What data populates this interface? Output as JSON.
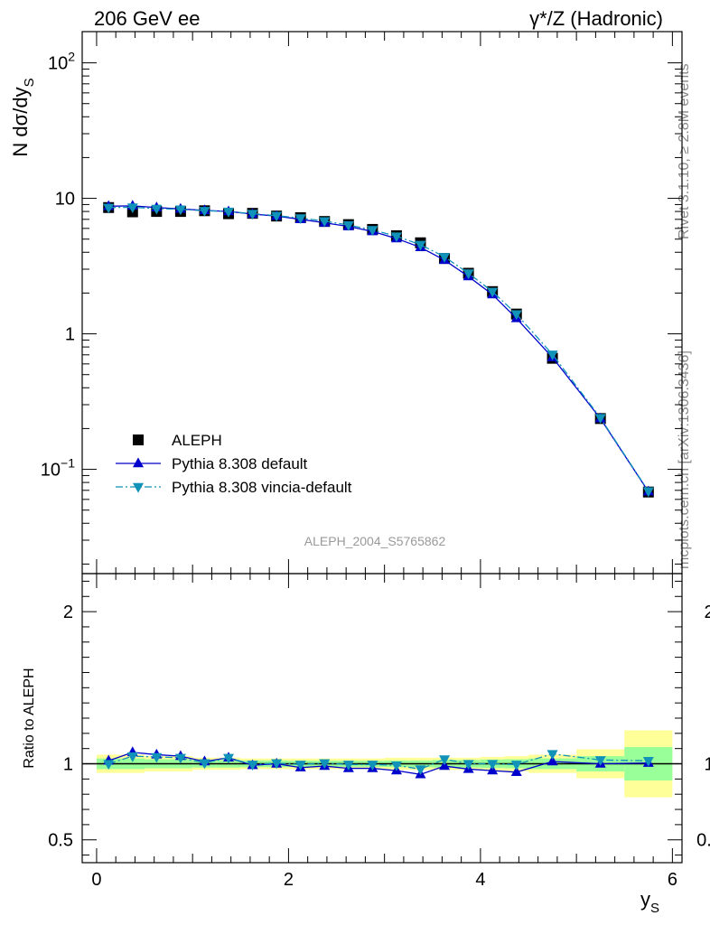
{
  "header": {
    "left": "206 GeV ee",
    "right": "γ*/Z (Hadronic)"
  },
  "side_text": {
    "rivet": "Rivet 3.1.10, ≥ 2.8M events",
    "mcplots": "mcplots.cern.ch [arXiv:1306.3436]"
  },
  "analysis_id": "ALEPH_2004_S5765862",
  "chart_data": [
    {
      "type": "scatter",
      "panel": "main",
      "ylabel": "N dσ/dy_S",
      "xlabel": "y_S",
      "yscale": "log",
      "xlim": [
        -0.15,
        6.1
      ],
      "ylim": [
        0.017,
        170
      ],
      "y_ticks": [
        {
          "value": 0.1,
          "base": "10",
          "exp": "−1"
        },
        {
          "value": 1,
          "text": "1"
        },
        {
          "value": 10,
          "text": "10"
        },
        {
          "value": 100,
          "base": "10",
          "exp": "2"
        }
      ],
      "legend_position": "lower-left",
      "x": [
        0.125,
        0.375,
        0.625,
        0.875,
        1.125,
        1.375,
        1.625,
        1.875,
        2.125,
        2.375,
        2.625,
        2.875,
        3.125,
        3.375,
        3.625,
        3.875,
        4.125,
        4.375,
        4.75,
        5.25,
        5.75
      ],
      "series": [
        {
          "name": "ALEPH",
          "color": "#000000",
          "marker": "square",
          "values": [
            8.55,
            7.95,
            8.0,
            8.0,
            8.1,
            7.7,
            7.75,
            7.4,
            7.2,
            6.75,
            6.4,
            5.9,
            5.3,
            4.7,
            3.6,
            2.8,
            2.05,
            1.4,
            0.66,
            0.237,
            0.068
          ]
        },
        {
          "name": "Pythia 8.308 default",
          "color": "#0000cc",
          "marker": "triangle-up",
          "line": "solid",
          "values": [
            8.75,
            8.8,
            8.55,
            8.35,
            8.15,
            8.0,
            7.65,
            7.4,
            7.0,
            6.6,
            6.2,
            5.7,
            5.05,
            4.35,
            3.5,
            2.65,
            1.95,
            1.3,
            0.67,
            0.237,
            0.0685
          ]
        },
        {
          "name": "Pythia 8.308 vincia-default",
          "color": "#1192b8",
          "marker": "triangle-down",
          "line": "dashdot",
          "values": [
            8.55,
            8.6,
            8.4,
            8.3,
            8.1,
            8.0,
            7.7,
            7.45,
            7.15,
            6.8,
            6.35,
            5.85,
            5.25,
            4.55,
            3.7,
            2.8,
            2.05,
            1.4,
            0.705,
            0.24,
            0.069
          ]
        }
      ]
    },
    {
      "type": "line",
      "panel": "ratio",
      "ylabel": "Ratio to ALEPH",
      "xlabel": "y_S",
      "xlim": [
        -0.15,
        6.1
      ],
      "ylim": [
        0.35,
        2.25
      ],
      "x_ticks": [
        "0",
        "2",
        "4",
        "6"
      ],
      "y_ticks": [
        "0.5",
        "1",
        "2"
      ],
      "bins": [
        [
          0,
          0.25
        ],
        [
          0.25,
          0.5
        ],
        [
          0.5,
          0.75
        ],
        [
          0.75,
          1.0
        ],
        [
          1.0,
          1.25
        ],
        [
          1.25,
          1.5
        ],
        [
          1.5,
          1.75
        ],
        [
          1.75,
          2.0
        ],
        [
          2.0,
          2.25
        ],
        [
          2.25,
          2.5
        ],
        [
          2.5,
          2.75
        ],
        [
          2.75,
          3.0
        ],
        [
          3.0,
          3.25
        ],
        [
          3.25,
          3.5
        ],
        [
          3.5,
          3.75
        ],
        [
          3.75,
          4.0
        ],
        [
          4.0,
          4.25
        ],
        [
          4.25,
          4.5
        ],
        [
          4.5,
          5.0
        ],
        [
          5.0,
          5.5
        ],
        [
          5.5,
          6.0
        ]
      ],
      "band_stat": [
        0.035,
        0.035,
        0.03,
        0.03,
        0.025,
        0.025,
        0.022,
        0.022,
        0.02,
        0.02,
        0.02,
        0.02,
        0.022,
        0.022,
        0.025,
        0.025,
        0.028,
        0.03,
        0.035,
        0.05,
        0.11
      ],
      "band_total": [
        0.06,
        0.06,
        0.05,
        0.05,
        0.04,
        0.04,
        0.035,
        0.035,
        0.035,
        0.035,
        0.035,
        0.035,
        0.04,
        0.04,
        0.04,
        0.04,
        0.045,
        0.05,
        0.06,
        0.095,
        0.22
      ],
      "x": [
        0.125,
        0.375,
        0.625,
        0.875,
        1.125,
        1.375,
        1.625,
        1.875,
        2.125,
        2.375,
        2.625,
        2.875,
        3.125,
        3.375,
        3.625,
        3.875,
        4.125,
        4.375,
        4.75,
        5.25,
        5.75
      ],
      "series": [
        {
          "name": "Pythia 8.308 default",
          "color": "#0000cc",
          "marker": "triangle-up",
          "line": "solid",
          "values": [
            1.02,
            1.075,
            1.06,
            1.05,
            1.015,
            1.04,
            0.99,
            1.0,
            0.975,
            0.985,
            0.97,
            0.97,
            0.955,
            0.93,
            0.985,
            0.965,
            0.955,
            0.945,
            1.015,
            1.0,
            1.005
          ]
        },
        {
          "name": "Pythia 8.308 vincia-default",
          "color": "#1192b8",
          "marker": "triangle-down",
          "line": "dashdot",
          "values": [
            1.0,
            1.05,
            1.045,
            1.04,
            1.005,
            1.04,
            0.995,
            1.005,
            0.995,
            1.005,
            0.995,
            0.995,
            0.99,
            0.965,
            1.03,
            1.0,
            1.0,
            0.995,
            1.065,
            1.025,
            1.02
          ]
        }
      ]
    }
  ]
}
